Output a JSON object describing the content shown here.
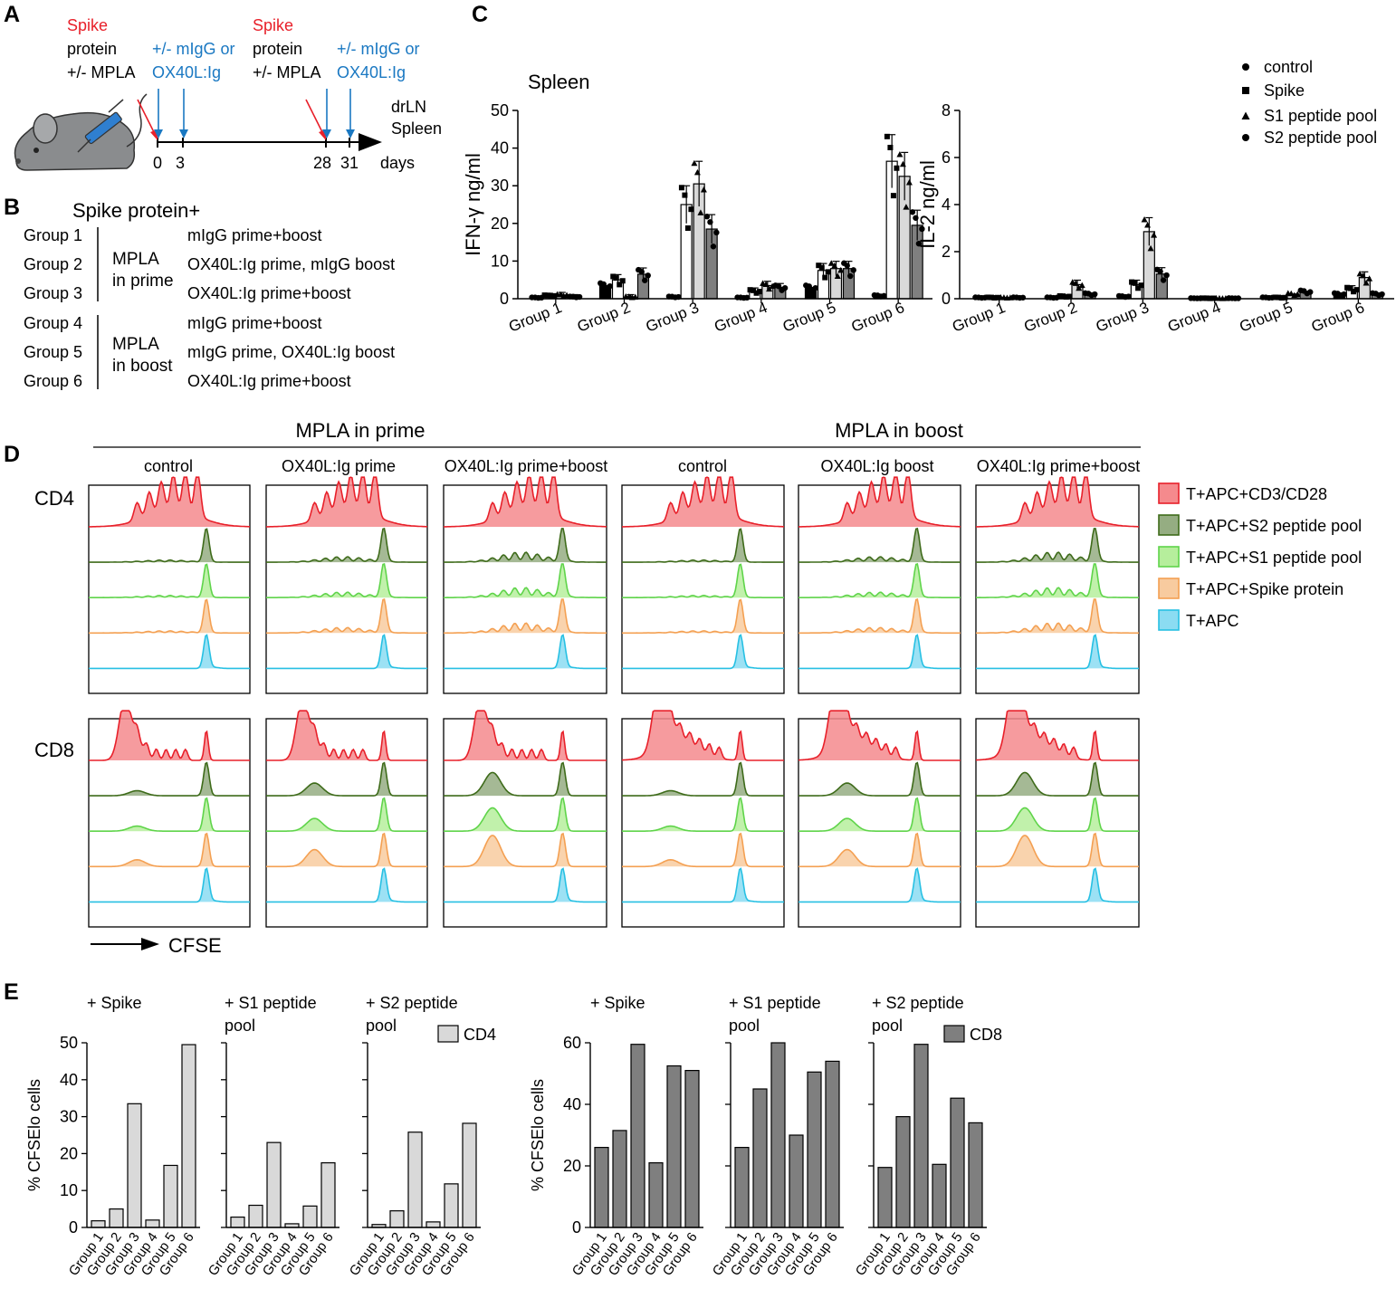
{
  "panels": {
    "A": {
      "label": "A",
      "injection1": {
        "line1": "Spike",
        "line2": "protein",
        "line3": "+/- MPLA"
      },
      "treat1": {
        "line1": "+/- mIgG or",
        "line2": "OX40L:Ig"
      },
      "injection2": {
        "line1": "Spike",
        "line2": "protein",
        "line3": "+/- MPLA"
      },
      "treat2": {
        "line1": "+/- mIgG or",
        "line2": "OX40L:Ig"
      },
      "harvest": {
        "line1": "drLN",
        "line2": "Spleen"
      },
      "days": [
        "0",
        "3",
        "28",
        "31"
      ],
      "days_label": "days",
      "colors": {
        "spike": "#e8202a",
        "treat": "#1a78c2"
      }
    },
    "B": {
      "label": "B",
      "title": "Spike protein+",
      "groups": [
        "Group 1",
        "Group 2",
        "Group 3",
        "Group 4",
        "Group 5",
        "Group 6"
      ],
      "mpla_prime": {
        "line1": "MPLA",
        "line2": "in prime"
      },
      "mpla_boost": {
        "line1": "MPLA",
        "line2": "in boost"
      },
      "treatments": [
        "mIgG prime+boost",
        "OX40L:Ig prime, mIgG boost",
        "OX40L:Ig prime+boost",
        "mIgG prime+boost",
        "mIgG prime, OX40L:Ig boost",
        "OX40L:Ig prime+boost"
      ]
    },
    "C": {
      "label": "C",
      "tissue": "Spleen"
    },
    "D": {
      "label": "D",
      "prime_header": "MPLA in prime",
      "boost_header": "MPLA in boost",
      "columns": [
        "control",
        "OX40L:Ig prime",
        "OX40L:Ig prime+boost",
        "control",
        "OX40L:Ig boost",
        "OX40L:Ig prime+boost"
      ],
      "rows": [
        "CD4",
        "CD8"
      ],
      "axis_label": "CFSE",
      "legend": [
        "T+APC+CD3/CD28",
        "T+APC+S2 peptide pool",
        "T+APC+S1 peptide pool",
        "T+APC+Spike protein",
        "T+APC"
      ],
      "colors": {
        "cd3": {
          "line": "#e8202a",
          "fill": "#f58a8d"
        },
        "s2": {
          "line": "#3e6b1a",
          "fill": "#95ad82"
        },
        "s1": {
          "line": "#5fd44a",
          "fill": "#b6ee9c"
        },
        "spike": {
          "line": "#f4a052",
          "fill": "#f8cb9f"
        },
        "apc": {
          "line": "#27c0e3",
          "fill": "#8bdcf2"
        }
      }
    },
    "E": {
      "label": "E"
    }
  },
  "chart_data": [
    {
      "id": "C-ifn",
      "type": "bar",
      "title": "",
      "ylabel": "IFN-γ ng/ml",
      "ylim": [
        0,
        50
      ],
      "yticks": [
        "0",
        "10",
        "20",
        "30",
        "40",
        "50"
      ],
      "categories": [
        "Group 1",
        "Group 2",
        "Group 3",
        "Group 4",
        "Group 5",
        "Group 6"
      ],
      "series": [
        {
          "name": "control",
          "values": [
            0.3,
            3.5,
            0.5,
            0.3,
            3.0,
            0.8
          ],
          "fill": "#000000",
          "error_bars": false
        },
        {
          "name": "Spike",
          "values": [
            0.8,
            5.0,
            25.0,
            2.0,
            7.5,
            36.5
          ],
          "fill": "#ffffff",
          "error_bars": true
        },
        {
          "name": "S1 peptide pool",
          "values": [
            1.0,
            0.5,
            30.5,
            3.5,
            8.0,
            32.5
          ],
          "fill": "#d9d9d9",
          "error_bars": true
        },
        {
          "name": "S2 peptide pool",
          "values": [
            0.5,
            6.5,
            18.5,
            3.0,
            8.0,
            19.5
          ],
          "fill": "#7f7f7f",
          "error_bars": true
        }
      ],
      "legend": [
        "control",
        "Spike",
        "S1 peptide pool",
        "S2 peptide pool"
      ]
    },
    {
      "id": "C-il2",
      "type": "bar",
      "title": "",
      "ylabel": "IL-2 ng/ml",
      "ylim": [
        0,
        8
      ],
      "yticks": [
        "0",
        "2",
        "4",
        "6",
        "8"
      ],
      "categories": [
        "Group 1",
        "Group 2",
        "Group 3",
        "Group 4",
        "Group 5",
        "Group 6"
      ],
      "series": [
        {
          "name": "control",
          "values": [
            0.05,
            0.05,
            0.1,
            0.02,
            0.05,
            0.2
          ],
          "fill": "#000000",
          "error_bars": false
        },
        {
          "name": "Spike",
          "values": [
            0.05,
            0.1,
            0.6,
            0.02,
            0.05,
            0.4
          ],
          "fill": "#ffffff",
          "error_bars": true
        },
        {
          "name": "S1 peptide pool",
          "values": [
            0.05,
            0.6,
            2.85,
            0.02,
            0.2,
            0.9
          ],
          "fill": "#d9d9d9",
          "error_bars": true
        },
        {
          "name": "S2 peptide pool",
          "values": [
            0.05,
            0.2,
            1.05,
            0.02,
            0.3,
            0.2
          ],
          "fill": "#7f7f7f",
          "error_bars": true
        }
      ]
    },
    {
      "id": "E-cd4-spike",
      "type": "bar",
      "title": "+ Spike",
      "ylabel": "% CFSElo cells",
      "ylim": [
        0,
        50
      ],
      "yticks": [
        "0",
        "10",
        "20",
        "30",
        "40",
        "50"
      ],
      "categories": [
        "Group 1",
        "Group 2",
        "Group 3",
        "Group 4",
        "Group 5",
        "Group 6"
      ],
      "values": [
        1.8,
        5.0,
        33.5,
        2.0,
        16.8,
        49.5
      ]
    },
    {
      "id": "E-cd4-s1",
      "type": "bar",
      "title": "+ S1 peptide pool",
      "ylabel": "",
      "ylim": [
        0,
        50
      ],
      "categories": [
        "Group 1",
        "Group 2",
        "Group 3",
        "Group 4",
        "Group 5",
        "Group 6"
      ],
      "values": [
        2.8,
        6.0,
        23.0,
        1.0,
        5.8,
        17.5
      ]
    },
    {
      "id": "E-cd4-s2",
      "type": "bar",
      "title": "+ S2 peptide pool",
      "ylabel": "",
      "ylim": [
        0,
        50
      ],
      "categories": [
        "Group 1",
        "Group 2",
        "Group 3",
        "Group 4",
        "Group 5",
        "Group 6"
      ],
      "values": [
        0.8,
        4.5,
        25.8,
        1.5,
        11.8,
        28.2
      ],
      "legend": "CD4"
    },
    {
      "id": "E-cd8-spike",
      "type": "bar",
      "title": "+ Spike",
      "ylabel": "% CFSElo cells",
      "ylim": [
        0,
        60
      ],
      "yticks": [
        "0",
        "20",
        "40",
        "60"
      ],
      "categories": [
        "Group 1",
        "Group 2",
        "Group 3",
        "Group 4",
        "Group 5",
        "Group 6"
      ],
      "values": [
        26,
        31.5,
        59.5,
        21,
        52.5,
        51
      ]
    },
    {
      "id": "E-cd8-s1",
      "type": "bar",
      "title": "+ S1 peptide pool",
      "ylabel": "",
      "ylim": [
        0,
        60
      ],
      "categories": [
        "Group 1",
        "Group 2",
        "Group 3",
        "Group 4",
        "Group 5",
        "Group 6"
      ],
      "values": [
        26,
        45,
        60,
        30,
        50.5,
        54
      ]
    },
    {
      "id": "E-cd8-s2",
      "type": "bar",
      "title": "+ S2 peptide pool",
      "ylabel": "",
      "ylim": [
        0,
        60
      ],
      "categories": [
        "Group 1",
        "Group 2",
        "Group 3",
        "Group 4",
        "Group 5",
        "Group 6"
      ],
      "values": [
        19.5,
        36,
        59.5,
        20.5,
        42,
        34
      ],
      "legend": "CD8"
    }
  ]
}
